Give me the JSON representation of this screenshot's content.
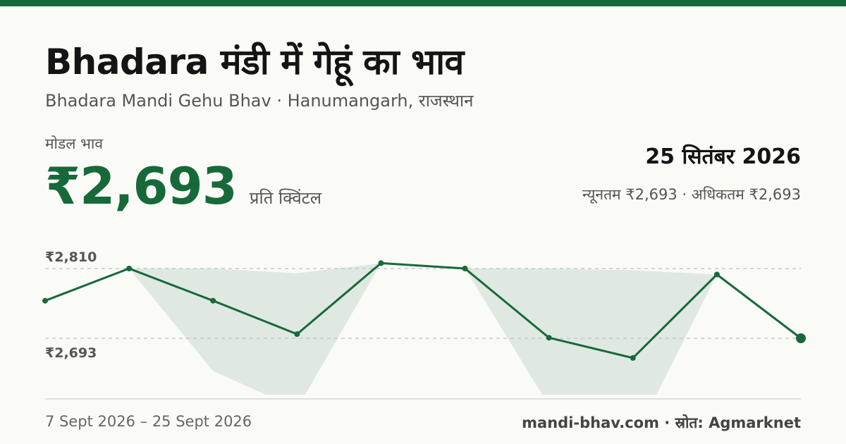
{
  "header": {
    "title": "Bhadara मंडी में गेहूं का भाव",
    "subtitle": "Bhadara Mandi Gehu Bhav · Hanumangarh, राजस्थान"
  },
  "price": {
    "label": "मोडल भाव",
    "value": "₹2,693",
    "unit": "प्रति क्विंटल"
  },
  "summary": {
    "date": "25 सितंबर 2026",
    "range": "न्यूनतम ₹2,693 · अधिकतम ₹2,693"
  },
  "footer": {
    "period": "7 Sept 2026 – 25 Sept 2026",
    "source": "mandi-bhav.com · स्रोत: Agmarknet"
  },
  "colors": {
    "accent": "#17693a",
    "band": "#dfe9e1",
    "gridline": "#c9c9c4"
  },
  "chart_data": {
    "type": "line",
    "x": [
      "7 Sept 2026",
      "",
      "",
      "",
      "",
      "",
      "",
      "",
      "",
      "25 Sept 2026"
    ],
    "series": [
      {
        "values": [
          2756,
          2810,
          2756,
          2700,
          2819,
          2810,
          2694,
          2660,
          2800,
          2693
        ]
      }
    ],
    "band": {
      "lower": [
        2756,
        2810,
        2638,
        2575,
        2819,
        2810,
        2580,
        2520,
        2800,
        2693
      ],
      "upper": [
        2756,
        2810,
        2810,
        2802,
        2819,
        2810,
        2810,
        2807,
        2800,
        2693
      ]
    },
    "ytick_labels": [
      {
        "value": 2810,
        "label": "₹2,810"
      },
      {
        "value": 2693,
        "label": "₹2,693"
      }
    ],
    "grid": false
  }
}
